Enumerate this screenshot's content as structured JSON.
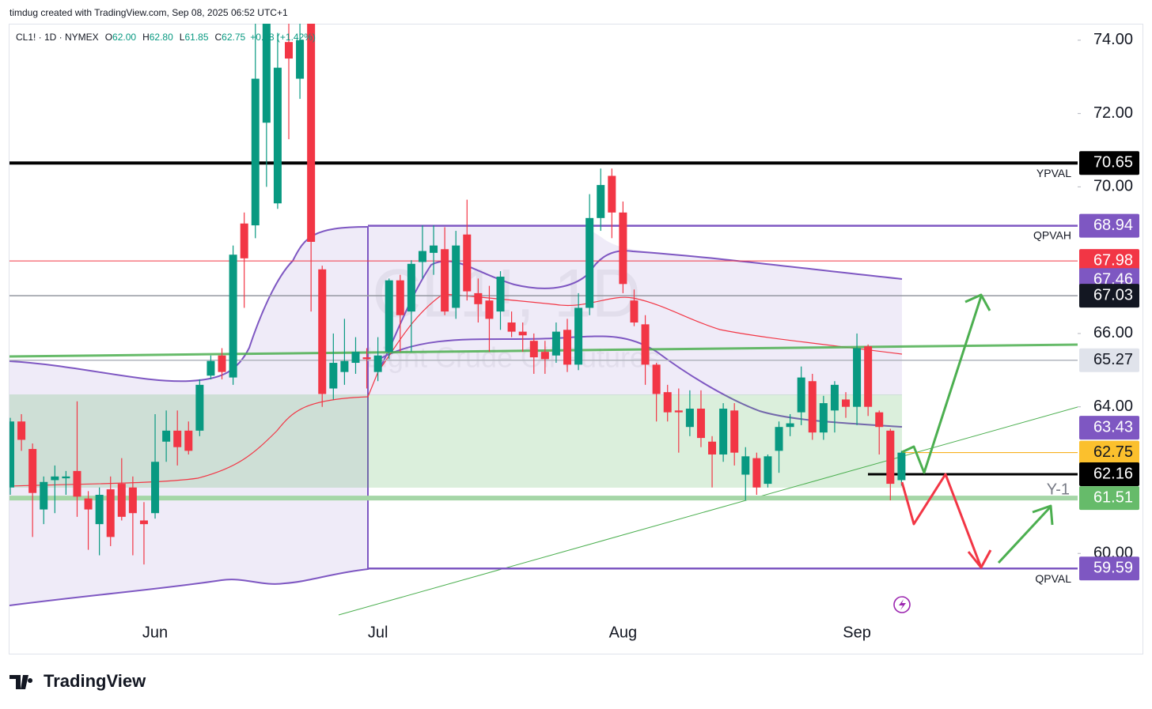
{
  "header": "timdug created with TradingView.com, Sep 08, 2025 06:52 UTC+1",
  "footer_logo": "TradingView",
  "chart_data": {
    "type": "candlestick",
    "legend": {
      "symbol": "CL1! · 1D · NYMEX",
      "items": [
        {
          "key": "O",
          "value": "62.00"
        },
        {
          "key": "H",
          "value": "62.80"
        },
        {
          "key": "L",
          "value": "61.85"
        },
        {
          "key": "C",
          "value": "62.75"
        }
      ],
      "change": "+0.88 (+1.42%)"
    },
    "watermark": [
      "CL1!, 1D",
      "Light Crude Oil Futures"
    ],
    "up_color": "#089981",
    "down_color": "#f23645",
    "categories": [
      null,
      null,
      null,
      null,
      null,
      null,
      null,
      null,
      null,
      null,
      null,
      null,
      null,
      "Jun",
      null,
      null,
      null,
      null,
      null,
      null,
      null,
      null,
      null,
      null,
      null,
      null,
      null,
      null,
      null,
      null,
      null,
      null,
      null,
      "Jul",
      null,
      null,
      null,
      null,
      null,
      null,
      null,
      null,
      null,
      null,
      null,
      null,
      null,
      null,
      null,
      null,
      null,
      null,
      null,
      null,
      null,
      "Aug",
      null,
      null,
      null,
      null,
      null,
      null,
      null,
      null,
      null,
      null,
      null,
      null,
      null,
      null,
      null,
      null,
      null,
      null,
      null,
      null,
      "Sep",
      null,
      null,
      null,
      null
    ],
    "open": [
      61.8,
      63.6,
      62.85,
      61.2,
      62.0,
      62.05,
      62.25,
      61.5,
      60.8,
      61.75,
      61.9,
      61.8,
      60.9,
      61.1,
      63.05,
      63.35,
      63.35,
      63.35,
      64.85,
      65.4,
      64.8,
      69.0,
      68.95,
      71.75,
      69.55,
      73.95,
      72.95,
      75.2,
      67.75,
      64.5,
      64.95,
      65.2,
      65.35,
      64.95,
      65.5,
      67.45,
      66.6,
      67.95,
      68.2,
      68.3,
      66.7,
      68.7,
      67.1,
      66.9,
      66.6,
      66.3,
      66.05,
      65.8,
      65.5,
      65.4,
      66.1,
      65.15,
      66.7,
      69.15,
      70.3,
      69.3,
      66.9,
      66.25,
      65.15,
      64.4,
      63.9,
      63.45,
      63.95,
      63.05,
      62.7,
      63.9,
      62.15,
      62.6,
      61.9,
      62.8,
      63.45,
      63.85,
      64.7,
      63.3,
      63.9,
      64.2,
      64.0,
      65.65,
      63.85,
      63.35,
      62.0
    ],
    "high": [
      63.7,
      63.8,
      63.0,
      62.1,
      62.4,
      62.25,
      64.15,
      61.7,
      61.8,
      62.1,
      62.6,
      62.1,
      61.4,
      63.8,
      63.9,
      63.9,
      63.6,
      64.75,
      65.4,
      65.6,
      68.4,
      69.3,
      75.2,
      75.8,
      74.2,
      74.45,
      74.5,
      75.8,
      67.85,
      66.0,
      66.4,
      65.9,
      65.6,
      65.9,
      67.5,
      67.6,
      68.0,
      68.95,
      68.95,
      68.9,
      68.8,
      69.65,
      67.5,
      67.3,
      67.7,
      66.6,
      66.3,
      66.0,
      65.8,
      66.3,
      66.4,
      67.1,
      69.8,
      70.5,
      70.5,
      69.6,
      67.2,
      66.5,
      65.2,
      64.6,
      64.5,
      64.45,
      64.45,
      63.2,
      64.1,
      64.1,
      62.9,
      62.75,
      62.7,
      63.6,
      63.8,
      65.1,
      64.9,
      64.3,
      64.7,
      64.4,
      66.0,
      65.7,
      63.9,
      63.4,
      62.8
    ],
    "low": [
      61.6,
      62.8,
      60.45,
      60.8,
      61.1,
      61.6,
      61.0,
      60.1,
      59.95,
      60.2,
      60.9,
      59.95,
      59.7,
      60.95,
      62.5,
      62.4,
      62.7,
      63.2,
      64.75,
      64.75,
      64.6,
      66.7,
      68.6,
      70.0,
      69.4,
      71.3,
      72.4,
      66.6,
      64.0,
      64.2,
      64.6,
      64.9,
      64.5,
      64.7,
      65.3,
      65.5,
      65.5,
      67.5,
      67.6,
      66.5,
      66.4,
      66.9,
      66.3,
      65.5,
      66.1,
      65.9,
      65.5,
      64.9,
      64.9,
      65.2,
      64.95,
      65.0,
      66.5,
      68.8,
      68.6,
      67.1,
      66.2,
      64.6,
      63.6,
      63.6,
      62.75,
      63.2,
      62.9,
      61.8,
      62.5,
      62.4,
      61.45,
      61.6,
      61.8,
      62.2,
      63.2,
      63.5,
      63.1,
      63.1,
      63.3,
      63.7,
      63.5,
      63.75,
      62.7,
      61.45,
      61.85
    ],
    "close": [
      63.6,
      63.1,
      61.65,
      61.95,
      62.1,
      62.1,
      61.55,
      61.2,
      61.6,
      60.45,
      61.0,
      61.1,
      60.8,
      62.5,
      63.35,
      62.9,
      62.8,
      64.6,
      65.25,
      64.95,
      68.15,
      68.05,
      72.95,
      75.2,
      73.25,
      73.5,
      74.0,
      68.5,
      64.35,
      65.2,
      65.25,
      65.5,
      65.3,
      65.4,
      67.45,
      66.5,
      67.9,
      68.25,
      68.4,
      66.6,
      68.4,
      67.15,
      66.8,
      66.4,
      67.55,
      66.05,
      65.95,
      65.35,
      65.3,
      66.05,
      65.15,
      66.7,
      69.15,
      70.05,
      69.3,
      67.35,
      66.3,
      65.15,
      64.35,
      63.85,
      63.85,
      63.95,
      63.15,
      62.7,
      63.95,
      62.75,
      62.65,
      61.8,
      62.65,
      63.45,
      63.55,
      64.8,
      63.3,
      64.1,
      64.6,
      64.0,
      65.6,
      64.0,
      63.45,
      61.9,
      62.75
    ],
    "ylim": [
      58.28,
      74.45
    ],
    "yticks": [
      {
        "value": 74,
        "label": "74.00"
      },
      {
        "value": 72,
        "label": "72.00"
      },
      {
        "value": 70,
        "label": "70.00"
      },
      {
        "value": 66,
        "label": "66.00"
      },
      {
        "value": 64,
        "label": "64.00"
      },
      {
        "value": 60,
        "label": "60.00"
      }
    ],
    "levels": [
      {
        "name": "YPVAL",
        "value": 70.65,
        "color": "#000000"
      },
      {
        "name": "QPVAH",
        "value": 68.94,
        "color": "#7e57c2"
      },
      {
        "value": 67.98,
        "color": "#f23645"
      },
      {
        "value": 67.46,
        "color": "#7e57c2"
      },
      {
        "value": 67.03,
        "color": "#131722"
      },
      {
        "value": 65.27,
        "color": "#e0e3eb"
      },
      {
        "value": 63.43,
        "color": "#7e57c2"
      },
      {
        "value": 62.75,
        "color": "#fbc02d"
      },
      {
        "value": 62.16,
        "color": "#000000"
      },
      {
        "name": "Y-1",
        "value": 61.51,
        "color": "#66bb6a"
      },
      {
        "name": "QPVAL",
        "value": 59.59,
        "color": "#7e57c2"
      }
    ]
  }
}
